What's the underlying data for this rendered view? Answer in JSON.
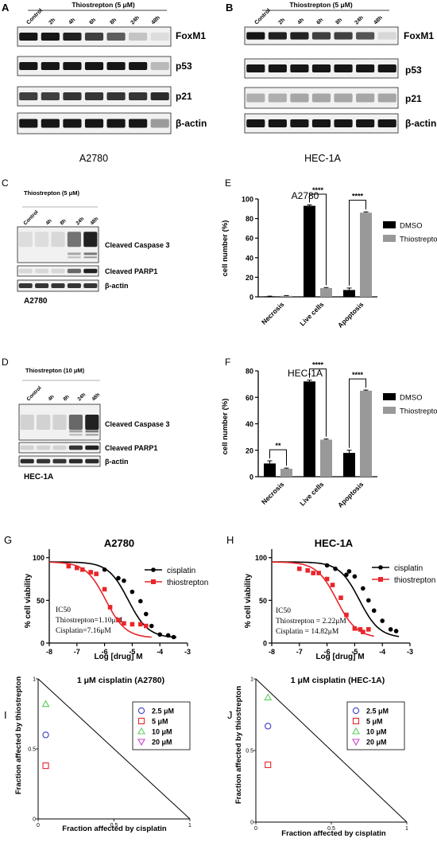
{
  "panel_letters": {
    "A": "A",
    "B": "B",
    "C": "C",
    "D": "D",
    "E": "E",
    "F": "F",
    "G": "G",
    "H": "H",
    "I": "I",
    "J": "J"
  },
  "blot_A": {
    "treatment": "Thiostrepton (5 μM)",
    "lanes": [
      "Control",
      "2h",
      "4h",
      "6h",
      "8h",
      "24h",
      "48h"
    ],
    "proteins": [
      "FoxM1",
      "p53",
      "p21",
      "β-actin"
    ],
    "cell_line": "A2780"
  },
  "blot_B": {
    "treatment": "Thiostrepton (5 μM)",
    "lanes": [
      "Control",
      "2h",
      "4h",
      "6h",
      "8h",
      "24h",
      "48h"
    ],
    "proteins": [
      "FoxM1",
      "p53",
      "p21",
      "β-actin"
    ],
    "cell_line": "HEC-1A"
  },
  "blot_C": {
    "treatment": "Thiostrepton (5 μM)",
    "lanes": [
      "Control",
      "4h",
      "8h",
      "24h",
      "48h"
    ],
    "proteins": [
      "Cleaved Caspase 3",
      "Cleaved PARP1",
      "β-actin"
    ],
    "cell_line": "A2780"
  },
  "blot_D": {
    "treatment": "Thiostrepton (10 μM)",
    "lanes": [
      "Control",
      "4h",
      "8h",
      "24h",
      "48h"
    ],
    "proteins": [
      "Cleaved Caspase 3",
      "Cleaved PARP1",
      "β-actin"
    ],
    "cell_line": "HEC-1A"
  },
  "chart_data": [
    {
      "id": "E",
      "type": "bar",
      "title": "A2780",
      "ylabel": "cell number (%)",
      "categories": [
        "Necrosis",
        "Live cells",
        "Apoptosis"
      ],
      "series": [
        {
          "name": "DMSO",
          "color": "#000000",
          "values": [
            0.5,
            93,
            7
          ],
          "errors": [
            0.2,
            1,
            2
          ]
        },
        {
          "name": "Thiostrepton",
          "color": "#999999",
          "values": [
            1,
            9,
            86
          ],
          "errors": [
            0.3,
            0.5,
            0.8
          ]
        }
      ],
      "ylim": [
        0,
        100
      ],
      "yticks": [
        0,
        20,
        40,
        60,
        80,
        100
      ],
      "significance": [
        {
          "category": "Live cells",
          "label": "****"
        },
        {
          "category": "Apoptosis",
          "label": "****"
        }
      ]
    },
    {
      "id": "F",
      "type": "bar",
      "title": "HEC-1A",
      "ylabel": "cell number (%)",
      "categories": [
        "Necrosis",
        "Live cells",
        "Apoptosis"
      ],
      "series": [
        {
          "name": "DMSO",
          "color": "#000000",
          "values": [
            10,
            72,
            18
          ],
          "errors": [
            2,
            1,
            2
          ]
        },
        {
          "name": "Thiostrepton",
          "color": "#999999",
          "values": [
            6,
            28,
            65
          ],
          "errors": [
            0.5,
            0.5,
            0.5
          ]
        }
      ],
      "ylim": [
        0,
        80
      ],
      "yticks": [
        0,
        20,
        40,
        60,
        80
      ],
      "significance": [
        {
          "category": "Necrosis",
          "label": "**"
        },
        {
          "category": "Live cells",
          "label": "****"
        },
        {
          "category": "Apoptosis",
          "label": "****"
        }
      ]
    },
    {
      "id": "G",
      "type": "line",
      "title": "A2780",
      "xlabel": "Log [drug] M",
      "ylabel": "% cell viability",
      "xlim": [
        -8,
        -3
      ],
      "xticks": [
        -8,
        -7,
        -6,
        -5,
        -4,
        -3
      ],
      "ylim": [
        0,
        110
      ],
      "yticks": [
        0,
        50,
        100
      ],
      "annotation": [
        "IC50",
        "Thiostrepton=1.10μM",
        "Cisplatin=7.16μM"
      ],
      "series": [
        {
          "name": "cisplatin",
          "color": "#000000",
          "marker": "circle",
          "logIC50": -5.145,
          "points": [
            [
              -6,
              86
            ],
            [
              -5.5,
              76
            ],
            [
              -5.3,
              73
            ],
            [
              -5,
              60
            ],
            [
              -4.7,
              49
            ],
            [
              -4.5,
              34
            ],
            [
              -4.3,
              20
            ],
            [
              -4,
              10
            ],
            [
              -3.7,
              9
            ],
            [
              -3.5,
              7
            ]
          ]
        },
        {
          "name": "thiostrepton",
          "color": "#e8262a",
          "marker": "square",
          "logIC50": -5.96,
          "points": [
            [
              -7.3,
              90
            ],
            [
              -7,
              88
            ],
            [
              -6.8,
              86
            ],
            [
              -6.5,
              83
            ],
            [
              -6.3,
              81
            ],
            [
              -6,
              63
            ],
            [
              -5.8,
              42
            ],
            [
              -5.5,
              27
            ],
            [
              -5.3,
              23
            ],
            [
              -5,
              22
            ],
            [
              -4.7,
              22
            ],
            [
              -4.5,
              20
            ]
          ]
        }
      ]
    },
    {
      "id": "H",
      "type": "line",
      "title": "HEC-1A",
      "xlabel": "Log [drug] M",
      "ylabel": "% cell viability",
      "xlim": [
        -8,
        -3
      ],
      "xticks": [
        -8,
        -7,
        -6,
        -5,
        -4,
        -3
      ],
      "ylim": [
        0,
        110
      ],
      "yticks": [
        0,
        50,
        100
      ],
      "annotation": [
        "IC50",
        "Thiostrepton = 2.22μM",
        "Cisplatin = 14.82μM"
      ],
      "series": [
        {
          "name": "cisplatin",
          "color": "#000000",
          "marker": "circle",
          "logIC50": -4.83,
          "points": [
            [
              -6,
              91
            ],
            [
              -5.7,
              87
            ],
            [
              -5.3,
              80
            ],
            [
              -5.2,
              84
            ],
            [
              -5,
              78
            ],
            [
              -4.7,
              64
            ],
            [
              -4.5,
              50
            ],
            [
              -4.3,
              38
            ],
            [
              -4,
              26
            ],
            [
              -3.7,
              16
            ],
            [
              -3.5,
              14
            ]
          ]
        },
        {
          "name": "thiostrepton",
          "color": "#e8262a",
          "marker": "square",
          "logIC50": -5.65,
          "points": [
            [
              -7,
              87
            ],
            [
              -6.7,
              85
            ],
            [
              -6.5,
              82
            ],
            [
              -6.3,
              82
            ],
            [
              -6,
              75
            ],
            [
              -5.8,
              68
            ],
            [
              -5.5,
              53
            ],
            [
              -5.3,
              33
            ],
            [
              -5,
              17
            ],
            [
              -4.8,
              16
            ],
            [
              -4.7,
              13
            ],
            [
              -4.5,
              16
            ]
          ]
        }
      ]
    },
    {
      "id": "I",
      "type": "scatter",
      "title": "1 μM cisplatin (A2780)",
      "xlabel": "Fraction affected by cisplatin",
      "ylabel": "Fraction affected by thiostrepton",
      "xlim": [
        0,
        1
      ],
      "ylim": [
        0,
        1
      ],
      "xticks": [
        "0",
        "0.5",
        "1"
      ],
      "yticks": [
        "0",
        "0.5",
        "1"
      ],
      "series": [
        {
          "name": "2.5 μM",
          "color": "#3d3dcc",
          "marker": "circle",
          "x": [
            0.05
          ],
          "y": [
            0.6
          ]
        },
        {
          "name": "5 μM",
          "color": "#e8262a",
          "marker": "square",
          "x": [
            0.05
          ],
          "y": [
            0.38
          ]
        },
        {
          "name": "10 μM",
          "color": "#5ccf5c",
          "marker": "triangle",
          "x": [
            0.05
          ],
          "y": [
            0.82
          ]
        },
        {
          "name": "20 μM",
          "color": "#cc44cc",
          "marker": "triangle-down",
          "x": [],
          "y": []
        }
      ]
    },
    {
      "id": "J",
      "type": "scatter",
      "title": "1 μM cisplatin (HEC-1A)",
      "xlabel": "Fraction affected by cisplatin",
      "ylabel": "Fraction affected by thiostrepton",
      "xlim": [
        0,
        1
      ],
      "ylim": [
        0,
        1
      ],
      "xticks": [
        "0",
        "0.5",
        "1"
      ],
      "yticks": [
        "0",
        "0.5",
        "1"
      ],
      "series": [
        {
          "name": "2.5 μM",
          "color": "#3d3dcc",
          "marker": "circle",
          "x": [
            0.08
          ],
          "y": [
            0.67
          ]
        },
        {
          "name": "5 μM",
          "color": "#e8262a",
          "marker": "square",
          "x": [
            0.08
          ],
          "y": [
            0.4
          ]
        },
        {
          "name": "10 μM",
          "color": "#5ccf5c",
          "marker": "triangle",
          "x": [
            0.08
          ],
          "y": [
            0.87
          ]
        },
        {
          "name": "20 μM",
          "color": "#cc44cc",
          "marker": "triangle-down",
          "x": [],
          "y": []
        }
      ]
    }
  ]
}
